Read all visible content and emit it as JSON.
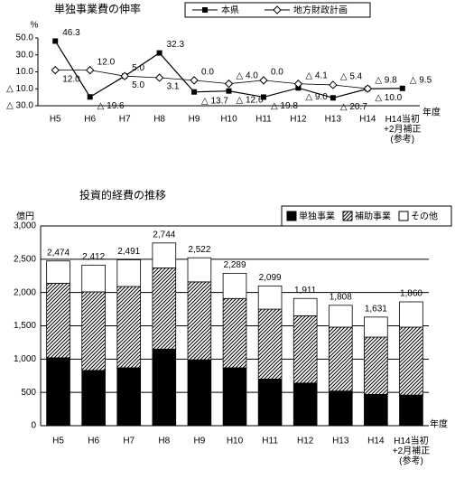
{
  "chart_data": [
    {
      "type": "line",
      "title": "単独事業費の伸率",
      "y_unit": "%",
      "x_label": "年度",
      "categories": [
        "H5",
        "H6",
        "H7",
        "H8",
        "H9",
        "H10",
        "H11",
        "H12",
        "H13",
        "H14",
        "H14当初\n+2月補正\n(参考)"
      ],
      "series": [
        {
          "name": "本県",
          "color": "#000000",
          "marker": "square",
          "values": [
            46.3,
            -19.6,
            5.0,
            32.3,
            -13.7,
            -12.6,
            -19.8,
            -9.0,
            -20.7,
            -10.0,
            -9.5
          ],
          "value_labels": [
            "46.3",
            "△ 19.6",
            "5.0",
            "32.3",
            "△ 13.7",
            "△ 12.6",
            "△ 19.8",
            "△ 9.0",
            "△ 20.7",
            "△ 10.0",
            "△ 9.5"
          ]
        },
        {
          "name": "地方財政計画",
          "color": "#000000",
          "marker": "diamond",
          "values": [
            12.0,
            12.0,
            5.0,
            3.1,
            0.0,
            -4.0,
            0.0,
            -4.1,
            -5.4,
            -9.8,
            null
          ],
          "value_labels": [
            "12.0",
            "12.0",
            "5.0",
            "3.1",
            "0.0",
            "△ 4.0",
            "0.0",
            "△ 4.1",
            "△ 5.4",
            "△ 9.8",
            null
          ]
        }
      ],
      "ylim": [
        -30,
        50
      ],
      "yticks": [
        {
          "value": -30,
          "label": "△ 30.0"
        },
        {
          "value": -10,
          "label": "△ 10.0"
        },
        {
          "value": 10,
          "label": "10.0"
        },
        {
          "value": 30,
          "label": "30.0"
        },
        {
          "value": 50,
          "label": "50.0"
        }
      ],
      "grid": false,
      "legend": "top"
    },
    {
      "type": "bar",
      "stacked": true,
      "title": "投資的経費の推移",
      "y_unit": "億円",
      "x_label": "年度",
      "categories": [
        "H5",
        "H6",
        "H7",
        "H8",
        "H9",
        "H10",
        "H11",
        "H12",
        "H13",
        "H14",
        "H14当初\n+2月補正\n(参考)"
      ],
      "series": [
        {
          "name": "単独事業",
          "color": "#000000",
          "pattern": "solid",
          "values": [
            1020,
            830,
            870,
            1150,
            990,
            870,
            700,
            640,
            520,
            470,
            460
          ]
        },
        {
          "name": "補助事業",
          "color": "#000000",
          "pattern": "hatch",
          "values": [
            1120,
            1180,
            1220,
            1220,
            1170,
            1040,
            1050,
            1010,
            960,
            860,
            1020
          ]
        },
        {
          "name": "その他",
          "color": "#ffffff",
          "pattern": "solid",
          "values": [
            334,
            402,
            401,
            374,
            362,
            379,
            349,
            261,
            328,
            301,
            380
          ]
        }
      ],
      "totals": [
        2474,
        2412,
        2491,
        2744,
        2522,
        2289,
        2099,
        1911,
        1808,
        1631,
        1860
      ],
      "total_labels": [
        "2,474",
        "2,412",
        "2,491",
        "2,744",
        "2,522",
        "2,289",
        "2,099",
        "1,911",
        "1,808",
        "1,631",
        "1,860"
      ],
      "ylim": [
        0,
        3000
      ],
      "yticks": [
        0,
        500,
        {
          "value": 1000,
          "label": "1,000"
        },
        {
          "value": 1500,
          "label": "1,500"
        },
        {
          "value": 2000,
          "label": "2,000"
        },
        {
          "value": 2500,
          "label": "2,500"
        },
        {
          "value": 3000,
          "label": "3,000"
        }
      ],
      "grid": true,
      "legend": "top-right"
    }
  ]
}
